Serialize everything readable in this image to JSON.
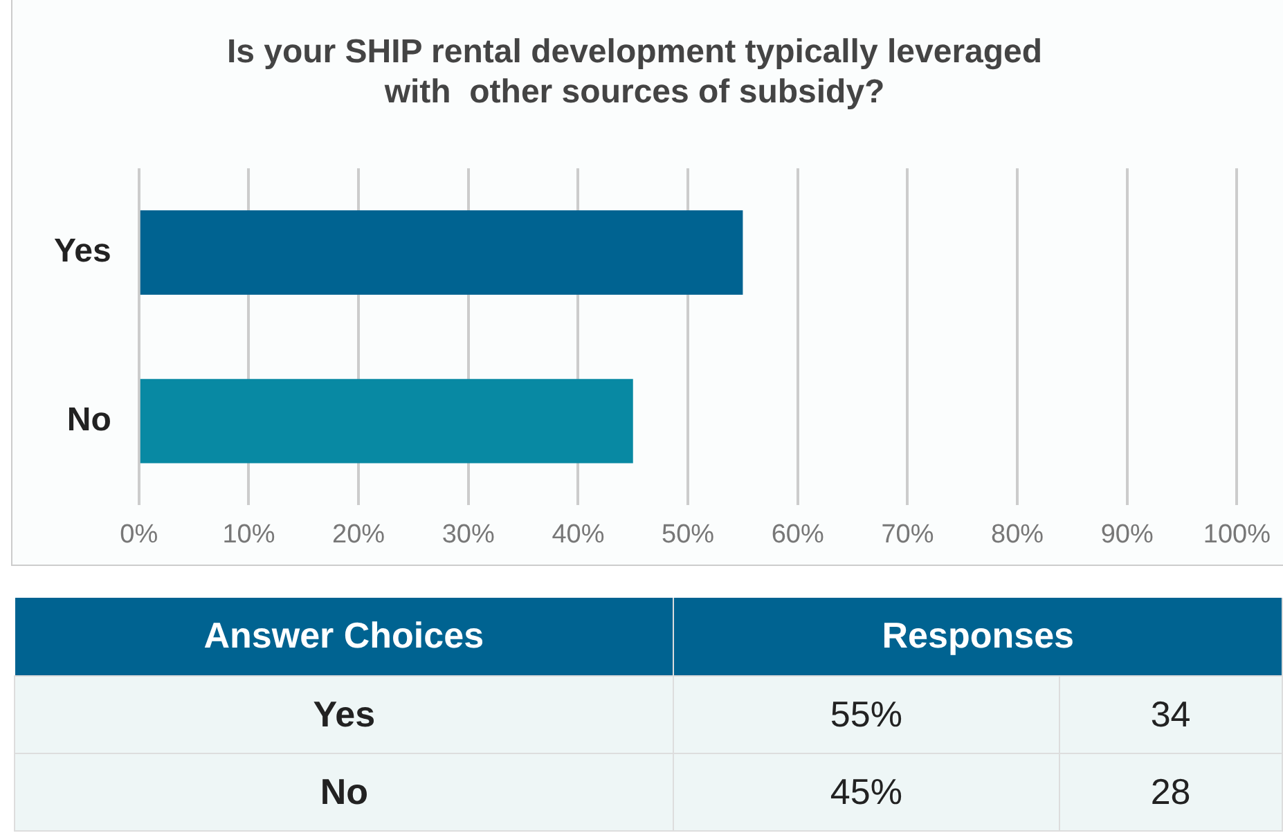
{
  "chart_data": {
    "type": "bar",
    "orientation": "horizontal",
    "title": "Is your SHIP rental development typically leveraged\nwith  other sources of subsidy?",
    "categories": [
      "Yes",
      "No"
    ],
    "values": [
      55,
      45
    ],
    "colors": [
      "#006391",
      "#0889a3"
    ],
    "xlim": [
      0,
      100
    ],
    "xticks": [
      {
        "value": 0,
        "label": "0%"
      },
      {
        "value": 10,
        "label": "10%"
      },
      {
        "value": 20,
        "label": "20%"
      },
      {
        "value": 30,
        "label": "30%"
      },
      {
        "value": 40,
        "label": "40%"
      },
      {
        "value": 50,
        "label": "50%"
      },
      {
        "value": 60,
        "label": "60%"
      },
      {
        "value": 70,
        "label": "70%"
      },
      {
        "value": 80,
        "label": "80%"
      },
      {
        "value": 90,
        "label": "90%"
      },
      {
        "value": 100,
        "label": "100%"
      }
    ],
    "grid": "x",
    "legend": false,
    "annotations": [
      "Answer Choices",
      "Responses",
      "55%",
      "34",
      "45%",
      "28"
    ]
  }
}
